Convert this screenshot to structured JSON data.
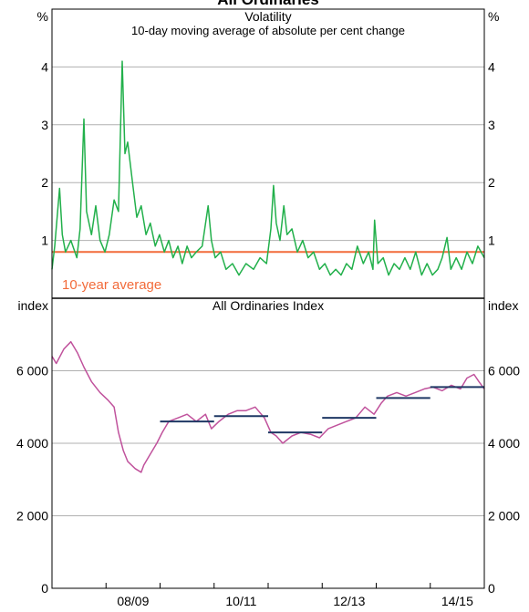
{
  "title": "All Ordinaries",
  "chart_data": [
    {
      "type": "line",
      "title": "Volatility",
      "subtitle": "10-day moving average of absolute per cent change",
      "y_unit": "%",
      "color": "#22b04b",
      "ylim": [
        0,
        5
      ],
      "yticks": [
        1,
        2,
        3,
        4
      ],
      "grid": true,
      "xlim": [
        2007.5,
        2015.5
      ],
      "average": 0.8,
      "average_label": "10-year average",
      "average_color": "#f26b3a",
      "x": [
        2007.5,
        2007.55,
        2007.64,
        2007.69,
        2007.75,
        2007.85,
        2007.96,
        2008.02,
        2008.09,
        2008.14,
        2008.23,
        2008.31,
        2008.39,
        2008.48,
        2008.56,
        2008.65,
        2008.73,
        2008.8,
        2008.85,
        2008.9,
        2008.99,
        2009.07,
        2009.15,
        2009.24,
        2009.32,
        2009.41,
        2009.49,
        2009.58,
        2009.66,
        2009.74,
        2009.83,
        2009.91,
        2010.0,
        2010.08,
        2010.17,
        2010.28,
        2010.39,
        2010.45,
        2010.52,
        2010.62,
        2010.72,
        2010.84,
        2010.96,
        2011.09,
        2011.23,
        2011.35,
        2011.47,
        2011.55,
        2011.6,
        2011.65,
        2011.72,
        2011.79,
        2011.85,
        2011.94,
        2012.04,
        2012.14,
        2012.24,
        2012.34,
        2012.45,
        2012.55,
        2012.65,
        2012.75,
        2012.85,
        2012.95,
        2013.05,
        2013.15,
        2013.26,
        2013.36,
        2013.44,
        2013.47,
        2013.53,
        2013.63,
        2013.73,
        2013.83,
        2013.93,
        2014.03,
        2014.13,
        2014.23,
        2014.34,
        2014.44,
        2014.54,
        2014.64,
        2014.72,
        2014.81,
        2014.88,
        2014.98,
        2015.08,
        2015.18,
        2015.28,
        2015.38,
        2015.5
      ],
      "values": [
        0.5,
        0.9,
        1.9,
        1.1,
        0.8,
        1.0,
        0.7,
        1.2,
        3.1,
        1.5,
        1.1,
        1.6,
        1.0,
        0.8,
        1.1,
        1.7,
        1.5,
        4.1,
        2.5,
        2.7,
        2.0,
        1.4,
        1.6,
        1.1,
        1.3,
        0.9,
        1.1,
        0.8,
        1.0,
        0.7,
        0.9,
        0.6,
        0.9,
        0.7,
        0.8,
        0.9,
        1.6,
        1.0,
        0.7,
        0.8,
        0.5,
        0.6,
        0.4,
        0.6,
        0.5,
        0.7,
        0.6,
        1.2,
        1.95,
        1.3,
        1.0,
        1.6,
        1.1,
        1.2,
        0.8,
        1.0,
        0.7,
        0.8,
        0.5,
        0.6,
        0.4,
        0.5,
        0.4,
        0.6,
        0.5,
        0.9,
        0.6,
        0.8,
        0.5,
        1.35,
        0.6,
        0.7,
        0.4,
        0.6,
        0.5,
        0.7,
        0.5,
        0.8,
        0.4,
        0.6,
        0.4,
        0.5,
        0.7,
        1.05,
        0.5,
        0.7,
        0.5,
        0.8,
        0.6,
        0.9,
        0.7
      ]
    },
    {
      "type": "line",
      "title": "All Ordinaries Index",
      "y_unit": "index",
      "color": "#c0529c",
      "ylim": [
        0,
        8000
      ],
      "yticks": [
        0,
        {
          "value": 2000,
          "label": "2 000"
        },
        {
          "value": 4000,
          "label": "4 000"
        },
        {
          "value": 6000,
          "label": "6 000"
        }
      ],
      "grid": true,
      "xlim": [
        2007.5,
        2015.5
      ],
      "xticks": [
        {
          "value": 2009,
          "label": "08/09"
        },
        {
          "value": 2011,
          "label": "10/11"
        },
        {
          "value": 2013,
          "label": "12/13"
        },
        {
          "value": 2015,
          "label": "14/15"
        }
      ],
      "x_boundaries": [
        2008.5,
        2009.5,
        2010.5,
        2011.5,
        2012.5,
        2013.5,
        2014.5
      ],
      "fy_averages": {
        "color": "#1f3864",
        "start": [
          2009.5,
          2010.5,
          2011.5,
          2012.5,
          2013.5,
          2014.5
        ],
        "end": [
          2010.5,
          2011.5,
          2012.5,
          2013.5,
          2014.5,
          2015.5
        ],
        "values": [
          4600,
          4750,
          4300,
          4700,
          5250,
          5550
        ]
      },
      "x": [
        2007.5,
        2007.58,
        2007.72,
        2007.85,
        2007.97,
        2008.09,
        2008.23,
        2008.39,
        2008.53,
        2008.65,
        2008.73,
        2008.82,
        2008.9,
        2009.04,
        2009.15,
        2009.2,
        2009.32,
        2009.44,
        2009.54,
        2009.66,
        2009.83,
        2010.0,
        2010.17,
        2010.34,
        2010.45,
        2010.59,
        2010.76,
        2010.93,
        2011.09,
        2011.26,
        2011.43,
        2011.55,
        2011.65,
        2011.77,
        2011.94,
        2012.11,
        2012.28,
        2012.45,
        2012.61,
        2012.78,
        2012.95,
        2013.12,
        2013.29,
        2013.46,
        2013.59,
        2013.71,
        2013.88,
        2014.05,
        2014.22,
        2014.39,
        2014.55,
        2014.72,
        2014.89,
        2015.06,
        2015.18,
        2015.31,
        2015.4,
        2015.5
      ],
      "values": [
        6400,
        6200,
        6600,
        6800,
        6500,
        6100,
        5700,
        5400,
        5200,
        5000,
        4300,
        3800,
        3500,
        3300,
        3200,
        3400,
        3700,
        4000,
        4300,
        4600,
        4700,
        4800,
        4600,
        4800,
        4400,
        4600,
        4800,
        4900,
        4900,
        5000,
        4700,
        4300,
        4200,
        4000,
        4200,
        4300,
        4250,
        4150,
        4400,
        4500,
        4600,
        4700,
        5000,
        4800,
        5100,
        5300,
        5400,
        5300,
        5400,
        5500,
        5550,
        5450,
        5600,
        5500,
        5800,
        5900,
        5700,
        5500
      ]
    }
  ]
}
